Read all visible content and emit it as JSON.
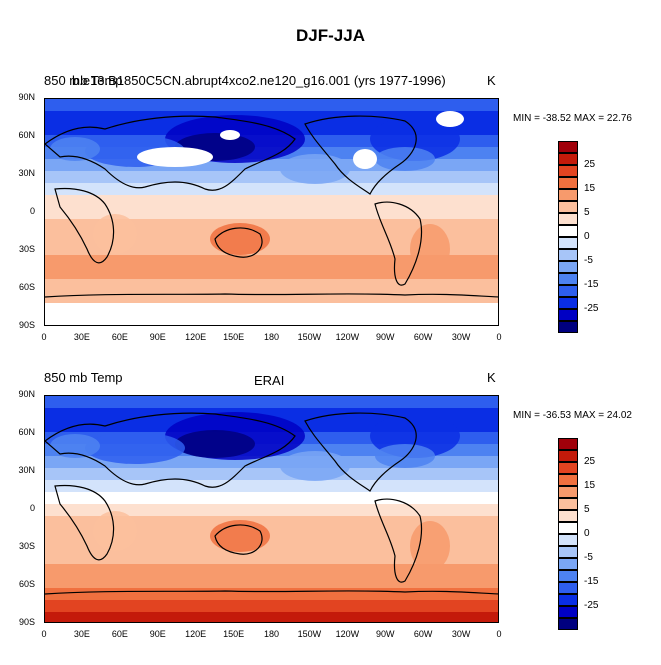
{
  "figure": {
    "title": "DJF-JJA",
    "colors": [
      "#00007f",
      "#0000c4",
      "#0a2ee4",
      "#2e5eee",
      "#4d82f1",
      "#7aa6f5",
      "#a7c5f8",
      "#d3e3fb",
      "#ffffff",
      "#fde0cf",
      "#fbbf9d",
      "#f79a6c",
      "#f0703f",
      "#e24421",
      "#c41a0a",
      "#a0000a"
    ],
    "panels": [
      {
        "left_title": "850 mb Temp",
        "overlay_title": "b.e13.B1850C5CN.abrupt4xco2.ne120_g16.001 (yrs 1977-1996)",
        "center_title": "",
        "units": "K",
        "stats": "MIN = -38.52 MAX =  22.76",
        "has_missing": true
      },
      {
        "left_title": "850 mb Temp",
        "overlay_title": "",
        "center_title": "ERAI",
        "units": "K",
        "stats": "MIN = -36.53 MAX = 24.02",
        "has_missing": false
      }
    ],
    "y_ticks": [
      "90N",
      "60N",
      "30N",
      "0",
      "30S",
      "60S",
      "90S"
    ],
    "x_ticks": [
      "0",
      "30E",
      "60E",
      "90E",
      "120E",
      "150E",
      "180",
      "150W",
      "120W",
      "90W",
      "60W",
      "30W",
      "0"
    ],
    "colorbar_labels": [
      "25",
      "15",
      "5",
      "0",
      "-5",
      "-15",
      "-25"
    ]
  }
}
